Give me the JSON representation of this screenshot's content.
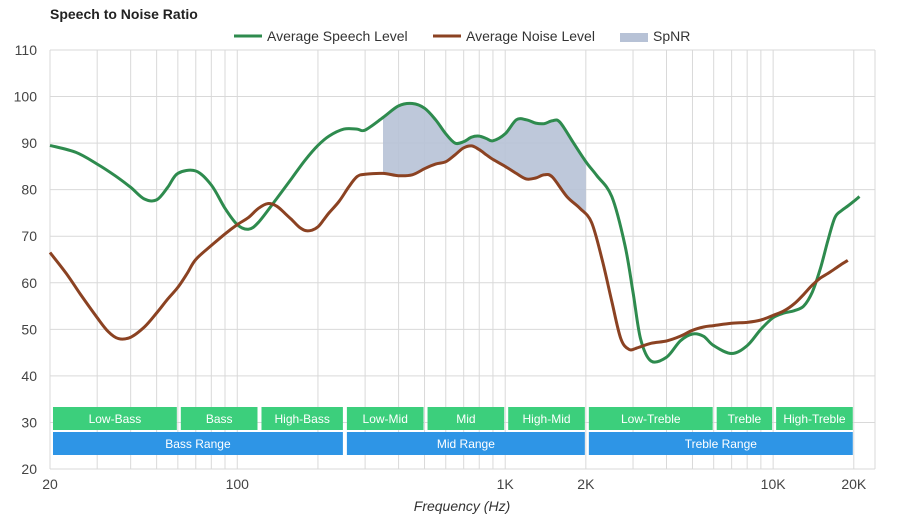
{
  "chart_data": {
    "type": "line",
    "title": "Speech to Noise Ratio",
    "xlabel": "Frequency (Hz)",
    "ylabel": "",
    "xscale": "log",
    "xlim": [
      20,
      24000
    ],
    "ylim": [
      20,
      110
    ],
    "yticks": [
      20,
      30,
      40,
      50,
      60,
      70,
      80,
      90,
      100,
      110
    ],
    "xticks": [
      {
        "value": 20,
        "label": "20"
      },
      {
        "value": 100,
        "label": "100"
      },
      {
        "value": 1000,
        "label": "1K"
      },
      {
        "value": 2000,
        "label": "2K"
      },
      {
        "value": 10000,
        "label": "10K"
      },
      {
        "value": 20000,
        "label": "20K"
      }
    ],
    "grid": true,
    "legend_position": "top",
    "legend": [
      "Average Speech Level",
      "Average Noise Level",
      "SpNR"
    ],
    "colors": {
      "speech": "#2e8b4e",
      "noise": "#8b4222",
      "spnr": "#b7c2d6",
      "band_green": "#3ccf7c",
      "band_blue": "#2e95e6"
    },
    "series": [
      {
        "name": "Average Speech Level",
        "points": [
          [
            20,
            89.5
          ],
          [
            25,
            88
          ],
          [
            30,
            85.5
          ],
          [
            35,
            83
          ],
          [
            40,
            80.5
          ],
          [
            45,
            78
          ],
          [
            50,
            77.8
          ],
          [
            55,
            80.5
          ],
          [
            60,
            83.5
          ],
          [
            70,
            84
          ],
          [
            80,
            81
          ],
          [
            90,
            76
          ],
          [
            100,
            72.5
          ],
          [
            110,
            71.5
          ],
          [
            120,
            73
          ],
          [
            140,
            78
          ],
          [
            160,
            82.5
          ],
          [
            180,
            86.5
          ],
          [
            200,
            89.5
          ],
          [
            220,
            91.5
          ],
          [
            250,
            93
          ],
          [
            280,
            93
          ],
          [
            300,
            92.8
          ],
          [
            350,
            95.5
          ],
          [
            400,
            98
          ],
          [
            450,
            98.5
          ],
          [
            500,
            97.5
          ],
          [
            550,
            95
          ],
          [
            600,
            92
          ],
          [
            650,
            90
          ],
          [
            700,
            90.3
          ],
          [
            750,
            91.3
          ],
          [
            800,
            91.5
          ],
          [
            850,
            91
          ],
          [
            900,
            90.5
          ],
          [
            1000,
            92
          ],
          [
            1100,
            95
          ],
          [
            1200,
            95
          ],
          [
            1300,
            94.3
          ],
          [
            1400,
            94.2
          ],
          [
            1500,
            94.8
          ],
          [
            1600,
            94.5
          ],
          [
            1800,
            90
          ],
          [
            2000,
            86
          ],
          [
            2200,
            83
          ],
          [
            2500,
            78.5
          ],
          [
            2800,
            68
          ],
          [
            3000,
            58
          ],
          [
            3200,
            48
          ],
          [
            3500,
            43.2
          ],
          [
            4000,
            44
          ],
          [
            4500,
            47.5
          ],
          [
            5000,
            49
          ],
          [
            5500,
            48.5
          ],
          [
            6000,
            46.5
          ],
          [
            7000,
            44.8
          ],
          [
            8000,
            46.5
          ],
          [
            9000,
            50
          ],
          [
            10000,
            52.5
          ],
          [
            11000,
            53.5
          ],
          [
            12000,
            54
          ],
          [
            13000,
            55
          ],
          [
            14000,
            58
          ],
          [
            15000,
            63
          ],
          [
            16000,
            69
          ],
          [
            17000,
            74
          ],
          [
            18000,
            75.5
          ],
          [
            19000,
            76.5
          ],
          [
            20000,
            77.5
          ],
          [
            21000,
            78.5
          ]
        ]
      },
      {
        "name": "Average Noise Level",
        "points": [
          [
            20,
            66.5
          ],
          [
            23,
            62
          ],
          [
            26,
            57.5
          ],
          [
            30,
            52.5
          ],
          [
            33,
            49.5
          ],
          [
            36,
            48
          ],
          [
            40,
            48.3
          ],
          [
            45,
            50.5
          ],
          [
            50,
            53.5
          ],
          [
            55,
            56.5
          ],
          [
            60,
            59
          ],
          [
            65,
            62
          ],
          [
            70,
            65
          ],
          [
            80,
            68
          ],
          [
            90,
            70.5
          ],
          [
            100,
            72.5
          ],
          [
            110,
            74
          ],
          [
            120,
            76
          ],
          [
            130,
            77
          ],
          [
            140,
            76.5
          ],
          [
            150,
            75
          ],
          [
            160,
            73.5
          ],
          [
            170,
            72
          ],
          [
            180,
            71.2
          ],
          [
            190,
            71.3
          ],
          [
            200,
            72
          ],
          [
            210,
            73.5
          ],
          [
            220,
            75
          ],
          [
            240,
            77.5
          ],
          [
            260,
            80.5
          ],
          [
            280,
            82.8
          ],
          [
            300,
            83.3
          ],
          [
            350,
            83.5
          ],
          [
            400,
            83
          ],
          [
            450,
            83.2
          ],
          [
            500,
            84.5
          ],
          [
            550,
            85.5
          ],
          [
            600,
            86
          ],
          [
            650,
            87.5
          ],
          [
            700,
            89
          ],
          [
            750,
            89.4
          ],
          [
            800,
            88.6
          ],
          [
            850,
            87.5
          ],
          [
            900,
            86.5
          ],
          [
            1000,
            85
          ],
          [
            1100,
            83.5
          ],
          [
            1200,
            82.3
          ],
          [
            1300,
            82.5
          ],
          [
            1400,
            83.2
          ],
          [
            1500,
            82.7
          ],
          [
            1700,
            78.5
          ],
          [
            1900,
            76
          ],
          [
            2100,
            73
          ],
          [
            2300,
            65
          ],
          [
            2500,
            56
          ],
          [
            2700,
            48
          ],
          [
            2900,
            45.7
          ],
          [
            3100,
            46
          ],
          [
            3500,
            47
          ],
          [
            4000,
            47.5
          ],
          [
            4500,
            48.5
          ],
          [
            5000,
            49.8
          ],
          [
            5500,
            50.5
          ],
          [
            6000,
            50.8
          ],
          [
            7000,
            51.3
          ],
          [
            8000,
            51.5
          ],
          [
            9000,
            52
          ],
          [
            10000,
            53
          ],
          [
            11000,
            54
          ],
          [
            12000,
            55.5
          ],
          [
            13000,
            57.5
          ],
          [
            14000,
            59.5
          ],
          [
            15000,
            61
          ],
          [
            16000,
            62
          ],
          [
            17000,
            63
          ],
          [
            18000,
            64
          ],
          [
            19000,
            64.8
          ]
        ]
      }
    ],
    "spnr_range": [
      350,
      2000
    ],
    "bands": [
      {
        "row": "sub",
        "label": "Low-Bass",
        "from": 20,
        "to": 60
      },
      {
        "row": "sub",
        "label": "Bass",
        "from": 60,
        "to": 120
      },
      {
        "row": "sub",
        "label": "High-Bass",
        "from": 120,
        "to": 250
      },
      {
        "row": "sub",
        "label": "Low-Mid",
        "from": 250,
        "to": 500
      },
      {
        "row": "sub",
        "label": "Mid",
        "from": 500,
        "to": 1000
      },
      {
        "row": "sub",
        "label": "High-Mid",
        "from": 1000,
        "to": 2000
      },
      {
        "row": "sub",
        "label": "Low-Treble",
        "from": 2000,
        "to": 6000
      },
      {
        "row": "sub",
        "label": "Treble",
        "from": 6000,
        "to": 10000
      },
      {
        "row": "sub",
        "label": "High-Treble",
        "from": 10000,
        "to": 20000
      },
      {
        "row": "main",
        "label": "Bass Range",
        "from": 20,
        "to": 250
      },
      {
        "row": "main",
        "label": "Mid Range",
        "from": 250,
        "to": 2000
      },
      {
        "row": "main",
        "label": "Treble Range",
        "from": 2000,
        "to": 20000
      }
    ]
  }
}
